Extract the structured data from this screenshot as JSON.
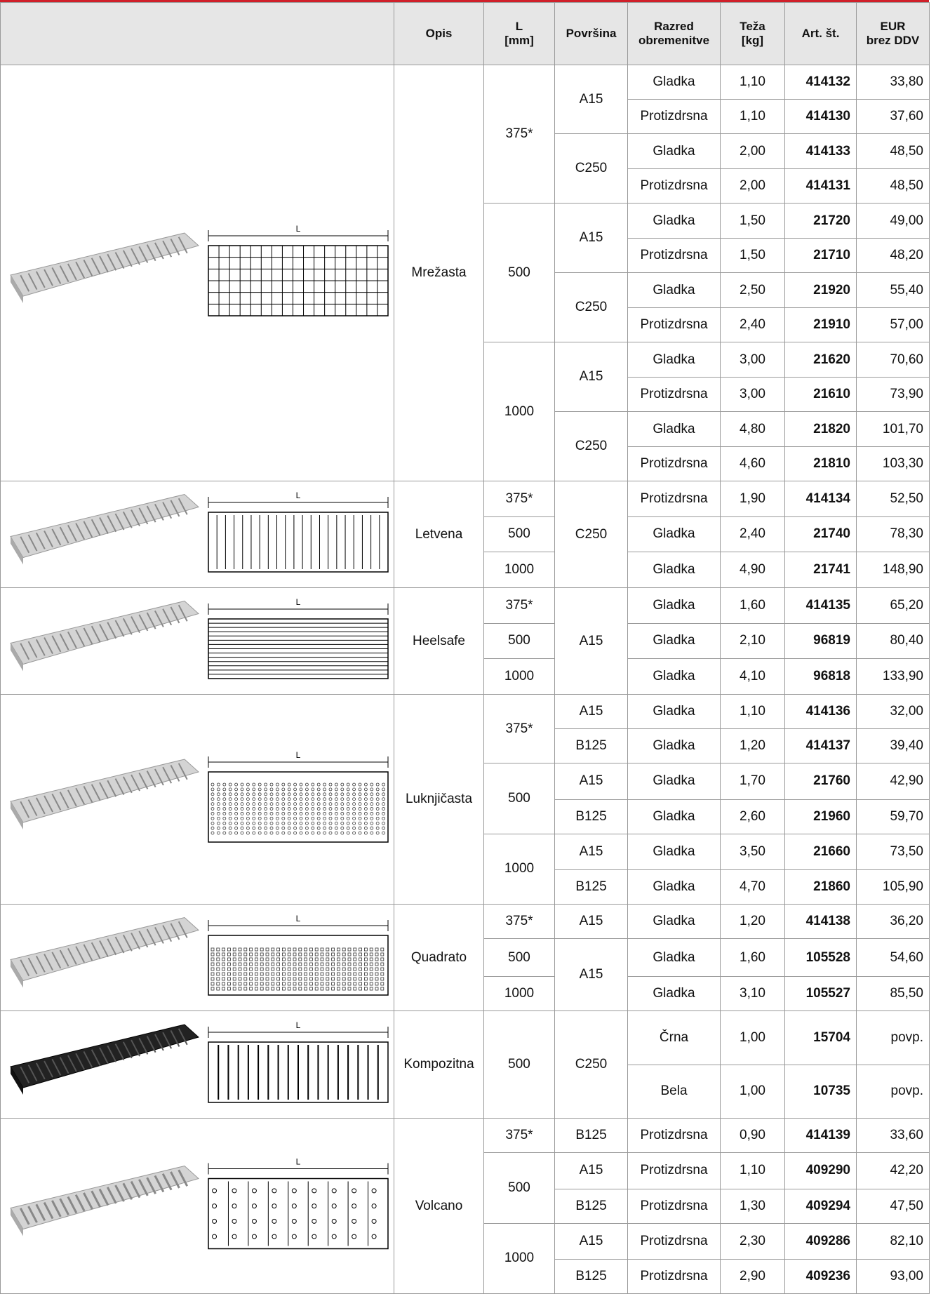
{
  "table": {
    "header": [
      "Opis",
      "L\n[mm]",
      "Površina",
      "Razred\nobremenitve",
      "Teža\n[kg]",
      "Art. št.",
      "EUR\nbrez DDV"
    ],
    "drawing_label": "L",
    "groups": [
      {
        "name": "Mrežasta",
        "rows": [
          [
            "375*",
            "A15",
            "Gladka",
            "1,10",
            "414132",
            "33,80"
          ],
          [
            null,
            null,
            "Protizdrsna",
            "1,10",
            "414130",
            "37,60"
          ],
          [
            null,
            "C250",
            "Gladka",
            "2,00",
            "414133",
            "48,50"
          ],
          [
            null,
            null,
            "Protizdrsna",
            "2,00",
            "414131",
            "48,50"
          ],
          [
            "500",
            "A15",
            "Gladka",
            "1,50",
            "21720",
            "49,00"
          ],
          [
            null,
            null,
            "Protizdrsna",
            "1,50",
            "21710",
            "48,20"
          ],
          [
            null,
            "C250",
            "Gladka",
            "2,50",
            "21920",
            "55,40"
          ],
          [
            null,
            null,
            "Protizdrsna",
            "2,40",
            "21910",
            "57,00"
          ],
          [
            "1000",
            "A15",
            "Gladka",
            "3,00",
            "21620",
            "70,60"
          ],
          [
            null,
            null,
            "Protizdrsna",
            "3,00",
            "21610",
            "73,90"
          ],
          [
            null,
            "C250",
            "Gladka",
            "4,80",
            "21820",
            "101,70"
          ],
          [
            null,
            null,
            "Protizdrsna",
            "4,60",
            "21810",
            "103,30"
          ]
        ]
      },
      {
        "name": "Letvena",
        "rows": [
          [
            "375*",
            "C250",
            "Protizdrsna",
            "1,90",
            "414134",
            "52,50"
          ],
          [
            "500",
            null,
            "Gladka",
            "2,40",
            "21740",
            "78,30"
          ],
          [
            "1000",
            null,
            "Gladka",
            "4,90",
            "21741",
            "148,90"
          ]
        ]
      },
      {
        "name": "Heelsafe",
        "rows": [
          [
            "375*",
            "A15",
            "Gladka",
            "1,60",
            "414135",
            "65,20"
          ],
          [
            "500",
            null,
            "Gladka",
            "2,10",
            "96819",
            "80,40"
          ],
          [
            "1000",
            null,
            "Gladka",
            "4,10",
            "96818",
            "133,90"
          ]
        ]
      },
      {
        "name": "Luknjičasta",
        "rows": [
          [
            "375*",
            "A15",
            "Gladka",
            "1,10",
            "414136",
            "32,00"
          ],
          [
            null,
            "B125",
            "Gladka",
            "1,20",
            "414137",
            "39,40"
          ],
          [
            "500",
            "A15",
            "Gladka",
            "1,70",
            "21760",
            "42,90"
          ],
          [
            null,
            "B125",
            "Gladka",
            "2,60",
            "21960",
            "59,70"
          ],
          [
            "1000",
            "A15",
            "Gladka",
            "3,50",
            "21660",
            "73,50"
          ],
          [
            null,
            "B125",
            "Gladka",
            "4,70",
            "21860",
            "105,90"
          ]
        ]
      },
      {
        "name": "Quadrato",
        "rows": [
          [
            "375*",
            "A15",
            "Gladka",
            "1,20",
            "414138",
            "36,20"
          ],
          [
            "500",
            "A15",
            "Gladka",
            "1,60",
            "105528",
            "54,60"
          ],
          [
            "1000",
            null,
            "Gladka",
            "3,10",
            "105527",
            "85,50"
          ]
        ]
      },
      {
        "name": "Kompozitna",
        "rows": [
          [
            "500",
            "C250",
            "Črna",
            "1,00",
            "15704",
            "povp."
          ],
          [
            null,
            null,
            "Bela",
            "1,00",
            "10735",
            "povp."
          ]
        ]
      },
      {
        "name": "Volcano",
        "rows": [
          [
            "375*",
            "B125",
            "Protizdrsna",
            "0,90",
            "414139",
            "33,60"
          ],
          [
            "500",
            "A15",
            "Protizdrsna",
            "1,10",
            "409290",
            "42,20"
          ],
          [
            null,
            "B125",
            "Protizdrsna",
            "1,30",
            "409294",
            "47,50"
          ],
          [
            "1000",
            "A15",
            "Protizdrsna",
            "2,30",
            "409286",
            "82,10"
          ],
          [
            null,
            "B125",
            "Protizdrsna",
            "2,90",
            "409236",
            "93,00"
          ]
        ]
      }
    ]
  }
}
